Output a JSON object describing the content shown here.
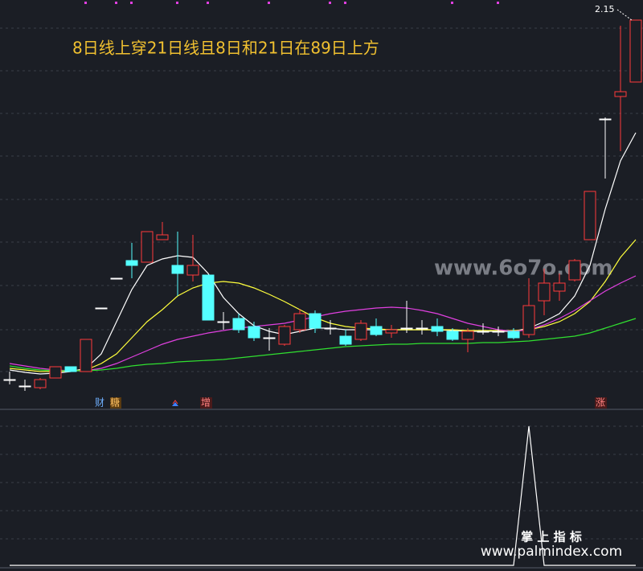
{
  "chart_data": {
    "type": "candlestick",
    "title": "8日线上穿21日线且8日和21日在89日上方",
    "open": [
      1.256,
      1.24,
      1.236,
      1.26,
      1.288,
      1.276,
      1.434,
      1.508,
      1.552,
      1.548,
      1.604,
      1.54,
      1.516,
      1.516,
      1.4,
      1.408,
      1.388,
      1.36,
      1.344,
      1.38,
      1.42,
      1.384,
      1.364,
      1.356,
      1.388,
      1.372,
      1.384,
      1.384,
      1.388,
      1.376,
      1.356,
      1.376,
      1.376,
      1.376,
      1.368,
      1.452,
      1.476,
      1.504,
      1.604,
      1.904,
      1.96,
      1.996
    ],
    "high": [
      1.276,
      1.256,
      1.26,
      1.288,
      1.288,
      1.356,
      1.434,
      1.508,
      1.596,
      1.624,
      1.648,
      1.624,
      1.616,
      1.516,
      1.424,
      1.42,
      1.4,
      1.384,
      1.392,
      1.432,
      1.428,
      1.404,
      1.38,
      1.404,
      1.408,
      1.392,
      1.452,
      1.404,
      1.408,
      1.384,
      1.384,
      1.396,
      1.388,
      1.384,
      1.508,
      1.532,
      1.52,
      1.556,
      1.724,
      1.908,
      2.136,
      2.15
    ],
    "low": [
      1.244,
      1.228,
      1.232,
      1.26,
      1.276,
      1.276,
      1.434,
      1.508,
      1.508,
      1.548,
      1.604,
      1.464,
      1.5,
      1.404,
      1.38,
      1.372,
      1.352,
      1.328,
      1.34,
      1.372,
      1.372,
      1.368,
      1.34,
      1.352,
      1.364,
      1.36,
      1.372,
      1.368,
      1.364,
      1.352,
      1.324,
      1.368,
      1.364,
      1.356,
      1.36,
      1.416,
      1.452,
      1.5,
      1.604,
      1.756,
      1.824,
      1.996
    ],
    "close": [
      1.256,
      1.24,
      1.256,
      1.288,
      1.276,
      1.356,
      1.434,
      1.508,
      1.54,
      1.624,
      1.616,
      1.52,
      1.54,
      1.404,
      1.4,
      1.38,
      1.36,
      1.36,
      1.388,
      1.42,
      1.384,
      1.384,
      1.344,
      1.396,
      1.368,
      1.38,
      1.384,
      1.384,
      1.376,
      1.356,
      1.376,
      1.376,
      1.376,
      1.36,
      1.44,
      1.496,
      1.496,
      1.552,
      1.724,
      1.904,
      1.972,
      2.15
    ],
    "up_color": "#ff3b3b",
    "down_color": "#54ffff",
    "flat_color": "#ffffff",
    "series": [
      {
        "color": "#ffffff",
        "values": [
          1.28,
          1.274,
          1.27,
          1.272,
          1.276,
          1.284,
          1.32,
          1.4,
          1.48,
          1.54,
          1.556,
          1.564,
          1.56,
          1.52,
          1.46,
          1.42,
          1.39,
          1.376,
          1.368,
          1.376,
          1.384,
          1.384,
          1.38,
          1.38,
          1.38,
          1.38,
          1.38,
          1.38,
          1.38,
          1.378,
          1.376,
          1.376,
          1.376,
          1.376,
          1.384,
          1.4,
          1.42,
          1.464,
          1.54,
          1.68,
          1.8,
          1.87
        ]
      },
      {
        "color": "#ffff3c",
        "values": [
          1.284,
          1.28,
          1.276,
          1.276,
          1.278,
          1.28,
          1.296,
          1.32,
          1.36,
          1.4,
          1.43,
          1.464,
          1.484,
          1.496,
          1.5,
          1.496,
          1.484,
          1.468,
          1.45,
          1.43,
          1.41,
          1.396,
          1.388,
          1.384,
          1.382,
          1.38,
          1.38,
          1.38,
          1.38,
          1.38,
          1.378,
          1.378,
          1.378,
          1.378,
          1.38,
          1.388,
          1.4,
          1.42,
          1.45,
          1.5,
          1.56,
          1.604
        ]
      },
      {
        "color": "#e040e0",
        "values": [
          1.296,
          1.29,
          1.284,
          1.28,
          1.278,
          1.278,
          1.284,
          1.296,
          1.312,
          1.328,
          1.344,
          1.356,
          1.364,
          1.372,
          1.378,
          1.384,
          1.388,
          1.392,
          1.396,
          1.404,
          1.412,
          1.42,
          1.426,
          1.43,
          1.434,
          1.436,
          1.434,
          1.428,
          1.42,
          1.408,
          1.396,
          1.388,
          1.38,
          1.376,
          1.38,
          1.392,
          1.408,
          1.428,
          1.452,
          1.476,
          1.496,
          1.514
        ]
      },
      {
        "color": "#30e030",
        "values": [
          1.29,
          1.284,
          1.28,
          1.278,
          1.278,
          1.278,
          1.28,
          1.284,
          1.29,
          1.294,
          1.296,
          1.3,
          1.302,
          1.304,
          1.306,
          1.31,
          1.314,
          1.318,
          1.322,
          1.326,
          1.33,
          1.334,
          1.338,
          1.34,
          1.342,
          1.344,
          1.344,
          1.346,
          1.346,
          1.346,
          1.346,
          1.348,
          1.348,
          1.35,
          1.352,
          1.356,
          1.36,
          1.364,
          1.372,
          1.384,
          1.396,
          1.408
        ]
      }
    ],
    "ylim": [
      1.22,
      2.2
    ],
    "indicator": {
      "color": "#ffffff",
      "ylim": [
        0,
        1
      ],
      "values": [
        0,
        0,
        0,
        0,
        0,
        0,
        0,
        0,
        0,
        0,
        0,
        0,
        0,
        0,
        0,
        0,
        0,
        0,
        0,
        0,
        0,
        0,
        0,
        0,
        0,
        0,
        0,
        0,
        0,
        0,
        0,
        0,
        0,
        0,
        1,
        0,
        0,
        0,
        0,
        0,
        0,
        0
      ]
    },
    "markers": [
      "财",
      "糖",
      "增",
      "涨"
    ],
    "watermarks": [
      "www.6o7o.com",
      "掌 上 指 标",
      "www.palmindex.com"
    ]
  }
}
